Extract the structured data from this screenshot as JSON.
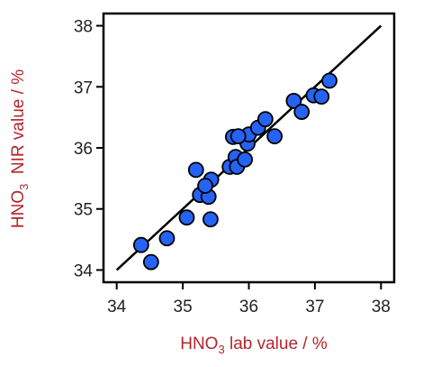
{
  "chart_data": {
    "type": "scatter",
    "x_label": [
      "HNO",
      "3",
      " lab value / %"
    ],
    "y_label": [
      "HNO",
      "3",
      "  NIR value / %"
    ],
    "label_color": "#b3262b",
    "x": [
      34.37,
      34.52,
      34.76,
      35.06,
      35.2,
      35.26,
      35.39,
      35.42,
      35.43,
      35.34,
      35.71,
      35.76,
      35.8,
      35.82,
      35.94,
      35.98,
      36.0,
      36.14,
      36.25,
      36.39,
      36.68,
      36.8,
      36.98,
      37.1,
      37.22,
      35.84
    ],
    "values": [
      34.41,
      34.13,
      34.52,
      34.86,
      35.64,
      35.23,
      35.2,
      34.83,
      35.48,
      35.38,
      35.69,
      36.18,
      35.85,
      35.69,
      35.81,
      36.07,
      36.22,
      36.33,
      36.47,
      36.19,
      36.77,
      36.59,
      36.86,
      36.84,
      37.1,
      36.19
    ],
    "color": "#2563f5",
    "reference_line": {
      "x": [
        34,
        38
      ],
      "y": [
        34,
        38
      ]
    },
    "xlim": [
      33.8,
      38.2
    ],
    "ylim": [
      33.8,
      38.2
    ],
    "xticks": [
      34,
      35,
      36,
      37,
      38
    ],
    "yticks": [
      34,
      35,
      36,
      37,
      38
    ]
  }
}
